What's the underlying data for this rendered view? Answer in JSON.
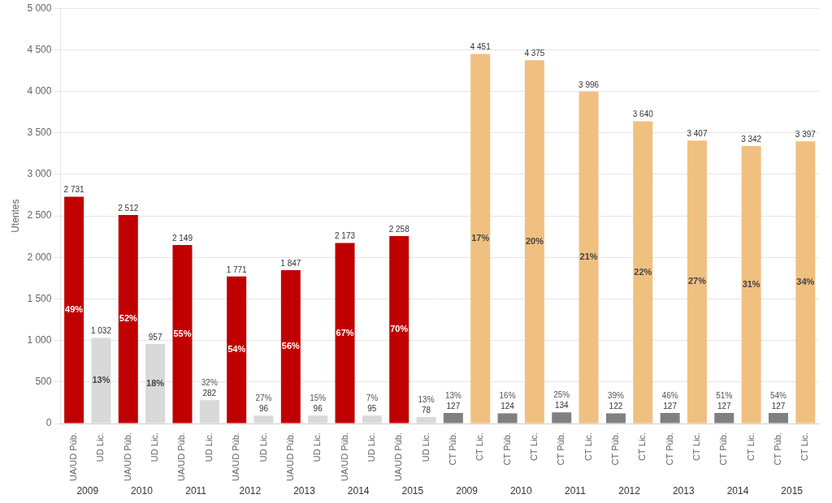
{
  "chart_data": {
    "type": "bar",
    "y_label": "Utentes",
    "categories": [
      "UA/UD Púb.",
      "UD Lic.",
      "UA/UD Púb.",
      "UD Lic.",
      "UA/UD Púb.",
      "UD Lic.",
      "UA/UD Púb.",
      "UD Lic.",
      "UA/UD Púb.",
      "UD Lic.",
      "UA/UD Púb.",
      "UD Lic.",
      "UA/UD Púb.",
      "UD Lic.",
      "CT Púb.",
      "CT Lic.",
      "CT Púb.",
      "CT Lic.",
      "CT Púb.",
      "CT Lic.",
      "CT Púb.",
      "CT Lic.",
      "CT Púb.",
      "CT Lic.",
      "CT Púb.",
      "CT Lic.",
      "CT Púb.",
      "CT Lic."
    ],
    "group_labels": [
      "2009",
      "2010",
      "2011",
      "2012",
      "2013",
      "2014",
      "2015",
      "2009",
      "2010",
      "2011",
      "2012",
      "2013",
      "2014",
      "2015"
    ],
    "values": [
      2731,
      1032,
      2512,
      957,
      2149,
      282,
      1771,
      96,
      1847,
      96,
      2173,
      95,
      2258,
      78,
      127,
      4451,
      124,
      4375,
      134,
      3996,
      122,
      3640,
      127,
      3407,
      127,
      3342,
      127,
      3397
    ],
    "value_labels": [
      "2 731",
      "1 032",
      "2 512",
      "957",
      "2 149",
      "282",
      "1 771",
      "96",
      "1 847",
      "96",
      "2 173",
      "95",
      "2 258",
      "78",
      "127",
      "4 451",
      "124",
      "4 375",
      "134",
      "3 996",
      "122",
      "3 640",
      "127",
      "3 407",
      "127",
      "3 342",
      "127",
      "3 397"
    ],
    "share_labels": [
      "49%",
      "13%",
      "52%",
      "18%",
      "55%",
      "32%",
      "54%",
      "27%",
      "56%",
      "15%",
      "67%",
      "7%",
      "70%",
      "13%",
      "13%",
      "17%",
      "16%",
      "20%",
      "25%",
      "21%",
      "39%",
      "22%",
      "46%",
      "27%",
      "51%",
      "31%",
      "54%",
      "34%"
    ],
    "colors": [
      "#C00000",
      "#D9D9D9",
      "#C00000",
      "#D9D9D9",
      "#C00000",
      "#D9D9D9",
      "#C00000",
      "#D9D9D9",
      "#C00000",
      "#D9D9D9",
      "#C00000",
      "#D9D9D9",
      "#C00000",
      "#D9D9D9",
      "#808080",
      "#F0C080",
      "#808080",
      "#F0C080",
      "#808080",
      "#F0C080",
      "#808080",
      "#F0C080",
      "#808080",
      "#F0C080",
      "#808080",
      "#F0C080",
      "#808080",
      "#F0C080"
    ],
    "data_labels": true,
    "ylim": [
      0,
      5000
    ],
    "yticks": [
      0,
      500,
      {
        "value": 1000,
        "label": "1 000"
      },
      {
        "value": 1500,
        "label": "1 500"
      },
      {
        "value": 2000,
        "label": "2 000"
      },
      {
        "value": 2500,
        "label": "2 500"
      },
      {
        "value": 3000,
        "label": "3 000"
      },
      {
        "value": 3500,
        "label": "3 500"
      },
      {
        "value": 4000,
        "label": "4 000"
      },
      {
        "value": 4500,
        "label": "4 500"
      },
      {
        "value": 5000,
        "label": "5 000"
      }
    ],
    "grid": true
  }
}
